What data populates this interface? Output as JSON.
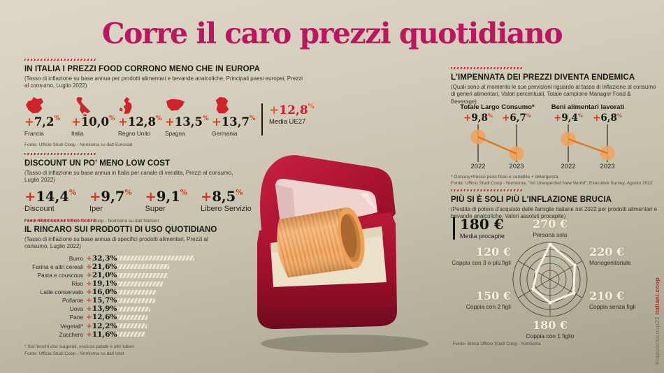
{
  "title": "Corre il caro prezzi quotidiano",
  "hashtag": {
    "handle": "#rapportocoop22 ",
    "site": "italiani.coop"
  },
  "sections": {
    "europe": {
      "heading": "IN ITALIA I PREZZI FOOD CORRONO MENO CHE IN EUROPA",
      "subtitle": "(Tasso di inflazione su base annua per prodotti alimentari e bevande analcoliche, Principali paesi europei, Prezzi al consumo, Luglio 2022)",
      "countries": [
        {
          "name": "Francia",
          "flag": "france",
          "sign": "+",
          "value": "7,2",
          "unit": "%",
          "num": 7.2
        },
        {
          "name": "Italia",
          "flag": "italy",
          "sign": "+",
          "value": "10,0",
          "unit": "%",
          "num": 10.0
        },
        {
          "name": "Regno Unito",
          "flag": "uk",
          "sign": "+",
          "value": "12,8",
          "unit": "%",
          "num": 12.8
        },
        {
          "name": "Spagna",
          "flag": "spain",
          "sign": "+",
          "value": "13,5",
          "unit": "%",
          "num": 13.5
        },
        {
          "name": "Germania",
          "flag": "germany",
          "sign": "+",
          "value": "13,7",
          "unit": "%",
          "num": 13.7
        }
      ],
      "eu_average": {
        "sign": "+",
        "value": "12,8",
        "unit": "%",
        "label": "Media UE27",
        "num": 12.8
      },
      "source": "Fonte: Ufficio Studi Coop - Nomisma su dati Eurostat"
    },
    "discount": {
      "heading": "DISCOUNT UN PO' MENO LOW COST",
      "subtitle": "(Tasso di inflazione su base annua in Italia per canale di vendita, Prezzi al consumo, Luglio 2022)",
      "items": [
        {
          "name": "Discount",
          "sign": "+",
          "value": "14,4",
          "unit": "%",
          "num": 14.4
        },
        {
          "name": "Iper",
          "sign": "+",
          "value": "9,7",
          "unit": "%",
          "num": 9.7
        },
        {
          "name": "Super",
          "sign": "+",
          "value": "9,1",
          "unit": "%",
          "num": 9.1
        },
        {
          "name": "Libero Servizio",
          "sign": "+",
          "value": "8,5",
          "unit": "%",
          "num": 8.5
        }
      ],
      "source": "Fonte: Elaborazione Ufficio Studi Coop - Nomisma su dati Nielsen"
    },
    "products": {
      "heading": "IL RINCARO SUI PRODOTTI DI USO QUOTIDIANO",
      "subtitle": "(Tasso di inflazione su base annua di specifici prodotti alimentari, Prezzi al consumo, Luglio 2022)",
      "rows": [
        {
          "label": "Burro",
          "sign": "+",
          "value": "32,3",
          "unit": "%",
          "num": 32.3
        },
        {
          "label": "Farina e altri cereali",
          "sign": "+",
          "value": "21,6",
          "unit": "%",
          "num": 21.6
        },
        {
          "label": "Pasta e couscous",
          "sign": "+",
          "value": "21,0",
          "unit": "%",
          "num": 21.0
        },
        {
          "label": "Riso",
          "sign": "+",
          "value": "19,1",
          "unit": "%",
          "num": 19.1
        },
        {
          "label": "Latte conservato",
          "sign": "+",
          "value": "16,0",
          "unit": "%",
          "num": 16.0
        },
        {
          "label": "Pollame",
          "sign": "+",
          "value": "15,7",
          "unit": "%",
          "num": 15.7
        },
        {
          "label": "Uova",
          "sign": "+",
          "value": "13,9",
          "unit": "%",
          "num": 13.9
        },
        {
          "label": "Pane",
          "sign": "+",
          "value": "12,6",
          "unit": "%",
          "num": 12.6
        },
        {
          "label": "Vegetali*",
          "sign": "+",
          "value": "12,2",
          "unit": "%",
          "num": 12.2
        },
        {
          "label": "Zucchero",
          "sign": "+",
          "value": "11,6",
          "unit": "%",
          "num": 11.6
        }
      ],
      "note": "* Sia freschi che surgelati, escluso patate e altri tuberi",
      "source": "Fonte: Ufficio Studi Coop - Nomisma su dati Istat"
    },
    "endemic": {
      "heading": "L'IMPENNATA DEI PREZZI DIVENTA ENDEMICA",
      "subtitle": "(Quali sono al momento le sue previsioni riguardo al tasso di inflazione al consumo di generi alimentari, Valori percentuali, Totale campione Manager Food & Beverage)",
      "groups": [
        {
          "label": "Totale Largo Consumo*",
          "points": [
            {
              "year": "2022",
              "sign": "+",
              "value": "9,8",
              "unit": "%",
              "num": 9.8
            },
            {
              "year": "2023",
              "sign": "+",
              "value": "6,7",
              "unit": "%",
              "num": 6.7
            }
          ]
        },
        {
          "label": "Beni alimentari lavorati",
          "points": [
            {
              "year": "2022",
              "sign": "+",
              "value": "9,4",
              "unit": "%",
              "num": 9.4
            },
            {
              "year": "2023",
              "sign": "+",
              "value": "6,8",
              "unit": "%",
              "num": 6.8
            }
          ]
        }
      ],
      "note": "* Grocery+fresco peso fisso e variabile + detergenza",
      "source": "Fonte: Ufficio Studi Coop - Nomisma, \"An Unexpected New World\", Executive Survey, Agosto 2022"
    },
    "alone": {
      "heading": "PIÙ SI È SOLI PIÙ L'INFLAZIONE BRUCIA",
      "subtitle": "(Perdita di potere d'acquisto delle famiglie italiane nel 2022 per prodotti alimentari e bevande analcoliche, Valori assoluti procapite)",
      "average": {
        "value": "180 €",
        "label": "Media procapite",
        "num": 180
      },
      "radar": [
        {
          "label": "Persona sola",
          "value": "270 €",
          "num": 270
        },
        {
          "label": "Monogenitoriale",
          "value": "220 €",
          "num": 220
        },
        {
          "label": "Coppia senza figli",
          "value": "210 €",
          "num": 210
        },
        {
          "label": "Coppia con 1 figlio",
          "value": "180 €",
          "num": 180
        },
        {
          "label": "Coppia con 2 figli",
          "value": "150 €",
          "num": 150
        },
        {
          "label": "Coppia con 3 o più figli",
          "value": "120 €",
          "num": 120
        }
      ],
      "source": "Fonte: Stima Ufficio Studi Coop - Nomisma"
    }
  },
  "chart_data": [
    {
      "type": "bar",
      "title": "IN ITALIA I PREZZI FOOD CORRONO MENO CHE IN EUROPA",
      "categories": [
        "Francia",
        "Italia",
        "Regno Unito",
        "Spagna",
        "Germania"
      ],
      "values": [
        7.2,
        10.0,
        12.8,
        13.5,
        13.7
      ],
      "unit": "%",
      "annotations": [
        "Media UE27: +12,8%"
      ]
    },
    {
      "type": "bar",
      "title": "DISCOUNT UN PO' MENO LOW COST",
      "categories": [
        "Discount",
        "Iper",
        "Super",
        "Libero Servizio"
      ],
      "values": [
        14.4,
        9.7,
        9.1,
        8.5
      ],
      "unit": "%"
    },
    {
      "type": "bar",
      "title": "IL RINCARO SUI PRODOTTI DI USO QUOTIDIANO",
      "orientation": "horizontal",
      "categories": [
        "Burro",
        "Farina e altri cereali",
        "Pasta e couscous",
        "Riso",
        "Latte conservato",
        "Pollame",
        "Uova",
        "Pane",
        "Vegetali*",
        "Zucchero"
      ],
      "values": [
        32.3,
        21.6,
        21.0,
        19.1,
        16.0,
        15.7,
        13.9,
        12.6,
        12.2,
        11.6
      ],
      "unit": "%",
      "xlim": [
        0,
        33
      ]
    },
    {
      "type": "line",
      "title": "L'IMPENNATA DEI PREZZI DIVENTA ENDEMICA",
      "x": [
        "2022",
        "2023"
      ],
      "series": [
        {
          "name": "Totale Largo Consumo*",
          "values": [
            9.8,
            6.7
          ]
        },
        {
          "name": "Beni alimentari lavorati",
          "values": [
            9.4,
            6.8
          ]
        }
      ],
      "unit": "%"
    },
    {
      "type": "radar",
      "title": "PIÙ SI È SOLI PIÙ L'INFLAZIONE BRUCIA",
      "categories": [
        "Persona sola",
        "Monogenitoriale",
        "Coppia senza figli",
        "Coppia con 1 figlio",
        "Coppia con 2 figli",
        "Coppia con 3 o più figli"
      ],
      "values": [
        270,
        220,
        210,
        180,
        150,
        120
      ],
      "unit": "€",
      "range": [
        0,
        270
      ],
      "annotations": [
        "Media procapite: 180 €"
      ]
    }
  ]
}
